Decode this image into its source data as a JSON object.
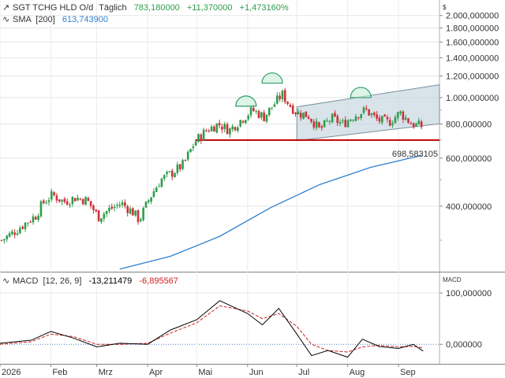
{
  "legend": {
    "symbol": "SGT TCHG HLD O/d",
    "interval": "Täglich",
    "last": "783,180000",
    "change": "+11,370000",
    "change_pct": "+1,473160%",
    "sma_label": "SMA",
    "sma_period": "[200]",
    "sma_value": "613,743900"
  },
  "price_axis": {
    "unit": "$",
    "ticks": [
      "2.000,000000",
      "1.800,000000",
      "1.600,000000",
      "1.400,000000",
      "1.200,000000",
      "1.000,000000",
      "800,000000",
      "600,000000",
      "400,000000"
    ],
    "tick_values": [
      2000,
      1800,
      1600,
      1400,
      1200,
      1000,
      800,
      600,
      400
    ],
    "scale": "log",
    "range": [
      230,
      2280
    ]
  },
  "support_label": "698,583105",
  "macd_legend": {
    "label": "MACD",
    "params": "[12, 26, 9]",
    "macd_value": "-13,211479",
    "signal_value": "-6,895567"
  },
  "macd_axis": {
    "unit": "MACD",
    "ticks": [
      "100,000000",
      "0,000000"
    ],
    "tick_values": [
      100,
      0
    ],
    "range": [
      -38,
      140
    ]
  },
  "time_axis": {
    "labels": [
      "2026",
      "Feb",
      "Mrz",
      "Apr",
      "Mai",
      "Jun",
      "Jul",
      "Aug",
      "Sep"
    ],
    "label_dates": [
      "2026-01-01",
      "2026-02-01",
      "2026-03-01",
      "2026-04-01",
      "2026-05-01",
      "2026-06-01",
      "2026-07-01",
      "2026-08-01",
      "2026-09-01"
    ],
    "range": [
      "2026-01-01",
      "2026-09-26"
    ]
  },
  "colors": {
    "up": "#2e9e4a",
    "down": "#d0303a",
    "sma": "#2f80d0",
    "support": "#c00000",
    "channel": "#b8ccd8",
    "arc": "#2e9e6a",
    "macd": "#000000",
    "signal": "#d02020",
    "zero": "#4a7fd0"
  },
  "chart_data": [
    {
      "type": "candlestick",
      "title": "SGT TCHG HLD O/d",
      "scale": "log",
      "ylim": [
        230,
        2280
      ],
      "series": [
        {
          "name": "SGT TCHG HLD O/d",
          "points": [
            {
              "x": "2026-01-02",
              "close": 300
            },
            {
              "x": "2026-01-09",
              "close": 320
            },
            {
              "x": "2026-01-16",
              "close": 345
            },
            {
              "x": "2026-01-23",
              "close": 370
            },
            {
              "x": "2026-01-27",
              "close": 410
            },
            {
              "x": "2026-02-02",
              "close": 440
            },
            {
              "x": "2026-02-09",
              "close": 415
            },
            {
              "x": "2026-02-16",
              "close": 430
            },
            {
              "x": "2026-02-23",
              "close": 420
            },
            {
              "x": "2026-03-02",
              "close": 365
            },
            {
              "x": "2026-03-09",
              "close": 390
            },
            {
              "x": "2026-03-16",
              "close": 410
            },
            {
              "x": "2026-03-23",
              "close": 380
            },
            {
              "x": "2026-03-27",
              "close": 355
            },
            {
              "x": "2026-04-02",
              "close": 425
            },
            {
              "x": "2026-04-09",
              "close": 500
            },
            {
              "x": "2026-04-16",
              "close": 530
            },
            {
              "x": "2026-04-23",
              "close": 570
            },
            {
              "x": "2026-04-30",
              "close": 690
            },
            {
              "x": "2026-05-07",
              "close": 760
            },
            {
              "x": "2026-05-14",
              "close": 800
            },
            {
              "x": "2026-05-21",
              "close": 760
            },
            {
              "x": "2026-05-28",
              "close": 830
            },
            {
              "x": "2026-06-04",
              "close": 900
            },
            {
              "x": "2026-06-11",
              "close": 850
            },
            {
              "x": "2026-06-18",
              "close": 960
            },
            {
              "x": "2026-06-22",
              "close": 1030
            },
            {
              "x": "2026-06-26",
              "close": 950
            },
            {
              "x": "2026-07-01",
              "close": 880
            },
            {
              "x": "2026-07-08",
              "close": 860
            },
            {
              "x": "2026-07-15",
              "close": 760
            },
            {
              "x": "2026-07-22",
              "close": 840
            },
            {
              "x": "2026-07-29",
              "close": 800
            },
            {
              "x": "2026-08-05",
              "close": 860
            },
            {
              "x": "2026-08-12",
              "close": 900
            },
            {
              "x": "2026-08-19",
              "close": 830
            },
            {
              "x": "2026-08-26",
              "close": 810
            },
            {
              "x": "2026-09-02",
              "close": 880
            },
            {
              "x": "2026-09-09",
              "close": 800
            },
            {
              "x": "2026-09-16",
              "close": 783.18
            }
          ]
        },
        {
          "name": "SMA [200]",
          "points": [
            {
              "x": "2026-03-15",
              "y": 235
            },
            {
              "x": "2026-04-15",
              "y": 262
            },
            {
              "x": "2026-05-15",
              "y": 310
            },
            {
              "x": "2026-06-15",
              "y": 395
            },
            {
              "x": "2026-07-15",
              "y": 480
            },
            {
              "x": "2026-08-15",
              "y": 555
            },
            {
              "x": "2026-09-15",
              "y": 613.7439
            }
          ]
        }
      ],
      "support": {
        "value": 698.583105,
        "from": "2026-04-30",
        "to": "2026-09-26"
      },
      "channel": {
        "lower": [
          {
            "x": "2026-07-01",
            "y": 695
          },
          {
            "x": "2026-09-26",
            "y": 802
          }
        ],
        "upper": [
          {
            "x": "2026-07-01",
            "y": 925
          },
          {
            "x": "2026-09-26",
            "y": 1115
          }
        ]
      },
      "arcs": [
        {
          "x": "2026-05-31",
          "y": 930
        },
        {
          "x": "2026-06-16",
          "y": 1130
        },
        {
          "x": "2026-08-09",
          "y": 1000
        }
      ]
    },
    {
      "type": "line",
      "title": "MACD",
      "ylim": [
        -38,
        140
      ],
      "series": [
        {
          "name": "MACD",
          "points": [
            {
              "x": "2026-01-01",
              "y": 2
            },
            {
              "x": "2026-01-20",
              "y": 8
            },
            {
              "x": "2026-02-01",
              "y": 25
            },
            {
              "x": "2026-02-15",
              "y": 12
            },
            {
              "x": "2026-03-01",
              "y": -5
            },
            {
              "x": "2026-03-15",
              "y": 2
            },
            {
              "x": "2026-04-01",
              "y": 0
            },
            {
              "x": "2026-04-15",
              "y": 28
            },
            {
              "x": "2026-05-01",
              "y": 48
            },
            {
              "x": "2026-05-15",
              "y": 85
            },
            {
              "x": "2026-06-01",
              "y": 60
            },
            {
              "x": "2026-06-10",
              "y": 38
            },
            {
              "x": "2026-06-20",
              "y": 70
            },
            {
              "x": "2026-07-01",
              "y": 20
            },
            {
              "x": "2026-07-10",
              "y": -22
            },
            {
              "x": "2026-07-20",
              "y": -12
            },
            {
              "x": "2026-08-01",
              "y": -25
            },
            {
              "x": "2026-08-10",
              "y": 10
            },
            {
              "x": "2026-08-20",
              "y": -4
            },
            {
              "x": "2026-09-01",
              "y": -8
            },
            {
              "x": "2026-09-10",
              "y": 0
            },
            {
              "x": "2026-09-16",
              "y": -13.211479
            }
          ]
        },
        {
          "name": "Signal",
          "points": [
            {
              "x": "2026-01-01",
              "y": 0
            },
            {
              "x": "2026-01-20",
              "y": 5
            },
            {
              "x": "2026-02-01",
              "y": 20
            },
            {
              "x": "2026-02-15",
              "y": 15
            },
            {
              "x": "2026-03-01",
              "y": 0
            },
            {
              "x": "2026-03-15",
              "y": 0
            },
            {
              "x": "2026-04-01",
              "y": 2
            },
            {
              "x": "2026-04-15",
              "y": 22
            },
            {
              "x": "2026-05-01",
              "y": 42
            },
            {
              "x": "2026-05-15",
              "y": 75
            },
            {
              "x": "2026-06-01",
              "y": 65
            },
            {
              "x": "2026-06-10",
              "y": 50
            },
            {
              "x": "2026-06-20",
              "y": 60
            },
            {
              "x": "2026-07-01",
              "y": 35
            },
            {
              "x": "2026-07-10",
              "y": 0
            },
            {
              "x": "2026-07-20",
              "y": -12
            },
            {
              "x": "2026-08-01",
              "y": -15
            },
            {
              "x": "2026-08-10",
              "y": -5
            },
            {
              "x": "2026-08-20",
              "y": -2
            },
            {
              "x": "2026-09-01",
              "y": -5
            },
            {
              "x": "2026-09-10",
              "y": -4
            },
            {
              "x": "2026-09-16",
              "y": -6.895567
            }
          ]
        }
      ]
    }
  ]
}
